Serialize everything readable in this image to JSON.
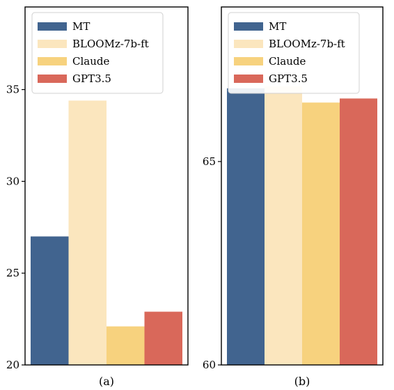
{
  "chart_data": [
    {
      "type": "bar",
      "caption": "(a)",
      "title": "",
      "xlabel": "",
      "ylabel": "",
      "ylim": [
        20,
        39.5
      ],
      "yticks": [
        20,
        25,
        30,
        35
      ],
      "series": [
        {
          "name": "MT",
          "color": "#41648f",
          "value": 27.0
        },
        {
          "name": "BLOOMz-7b-ft",
          "color": "#fbe6be",
          "value": 34.4
        },
        {
          "name": "Claude",
          "color": "#f7d27e",
          "value": 22.1
        },
        {
          "name": "GPT3.5",
          "color": "#d9685a",
          "value": 22.9
        }
      ],
      "legend_position": "upper-left",
      "grid": false
    },
    {
      "type": "bar",
      "caption": "(b)",
      "title": "",
      "xlabel": "",
      "ylabel": "",
      "ylim": [
        60,
        68.8
      ],
      "yticks": [
        60,
        65
      ],
      "series": [
        {
          "name": "MT",
          "color": "#41648f",
          "value": 66.8
        },
        {
          "name": "BLOOMz-7b-ft",
          "color": "#fbe6be",
          "value": 66.85
        },
        {
          "name": "Claude",
          "color": "#f7d27e",
          "value": 66.45
        },
        {
          "name": "GPT3.5",
          "color": "#d9685a",
          "value": 66.55
        }
      ],
      "legend_position": "upper-left",
      "grid": false
    }
  ]
}
